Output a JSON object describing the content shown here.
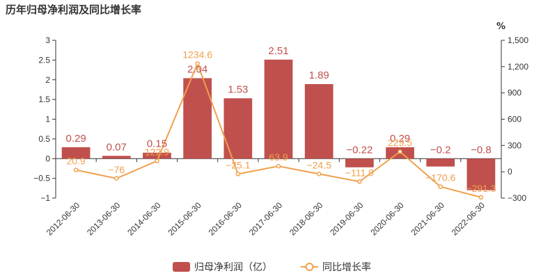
{
  "chart_data": {
    "type": "bar",
    "title": "历年归母净利润及同比增长率",
    "right_axis_unit": "%",
    "categories": [
      "2012-06-30",
      "2013-06-30",
      "2014-06-30",
      "2015-06-30",
      "2016-06-30",
      "2017-06-30",
      "2018-06-30",
      "2019-06-30",
      "2020-06-30",
      "2021-06-30",
      "2022-06-30"
    ],
    "series": [
      {
        "name": "归母净利润（亿）",
        "type": "bar",
        "axis": "left",
        "values": [
          0.29,
          0.07,
          0.15,
          2.04,
          1.53,
          2.51,
          1.89,
          -0.22,
          0.29,
          -0.2,
          -0.8
        ],
        "labels": [
          "0.29",
          "0.07",
          "0.15",
          "2.04",
          "1.53",
          "2.51",
          "1.89",
          "−0.22",
          "0.29",
          "−0.2",
          "−0.8"
        ],
        "color": "#c0504d"
      },
      {
        "name": "同比增长率",
        "type": "line",
        "axis": "right",
        "values": [
          20.9,
          -76,
          122.9,
          1234.6,
          -25.1,
          63.9,
          -24.5,
          -111.9,
          229.5,
          -170.6,
          -291.3
        ],
        "labels": [
          "20.9",
          "−76",
          "122.9",
          "1234.6",
          "−25.1",
          "63.9",
          "−24.5",
          "−111.9",
          "229.5",
          "−170.6",
          "−291.3"
        ],
        "color": "#f0a04b"
      }
    ],
    "y_left": {
      "min": -1,
      "max": 3,
      "ticks": [
        "−1",
        "−0.5",
        "0",
        "0.5",
        "1",
        "1.5",
        "2",
        "2.5",
        "3"
      ],
      "tick_values": [
        -1,
        -0.5,
        0,
        0.5,
        1,
        1.5,
        2,
        2.5,
        3
      ]
    },
    "y_right": {
      "min": -300,
      "max": 1500,
      "ticks": [
        "−300",
        "0",
        "300",
        "600",
        "900",
        "1,200",
        "1,500"
      ],
      "tick_values": [
        -300,
        0,
        300,
        600,
        900,
        1200,
        1500
      ]
    },
    "grid": false,
    "legend_position": "bottom-center"
  }
}
